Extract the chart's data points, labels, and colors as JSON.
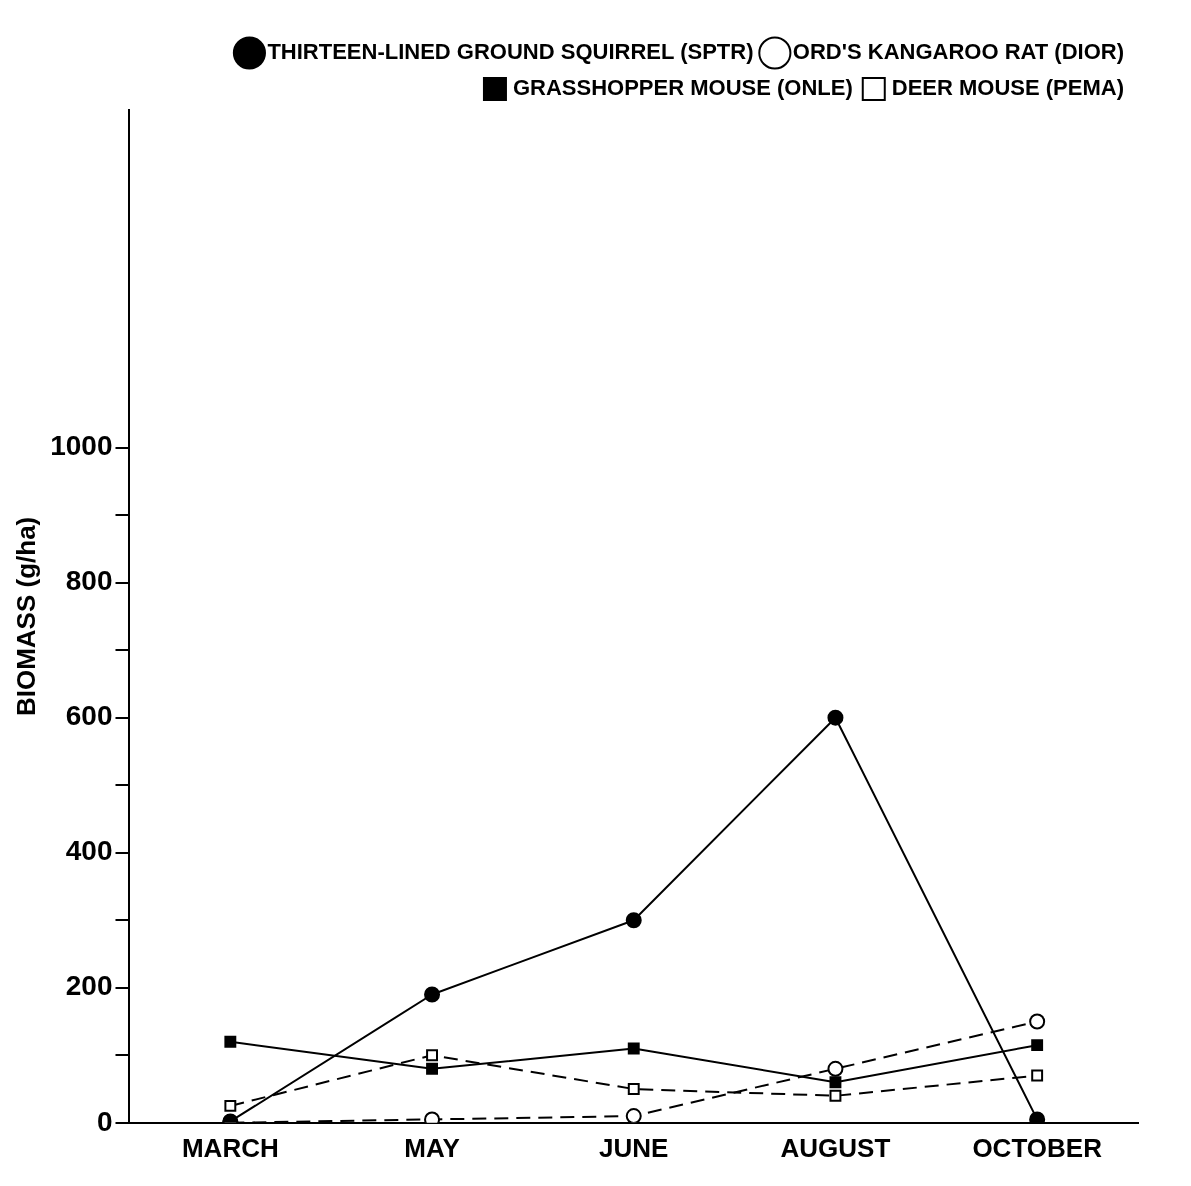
{
  "chart_data": {
    "type": "line",
    "ylabel": "BIOMASS (g/ha)",
    "categories": [
      "MARCH",
      "MAY",
      "JUNE",
      "AUGUST",
      "OCTOBER"
    ],
    "series": [
      {
        "name": "THIRTEEN-LINED GROUND SQUIRREL (SPTR)",
        "color": "#000000",
        "marker": "circle",
        "line_style": "solid",
        "values": [
          2,
          190,
          300,
          600,
          5
        ]
      },
      {
        "name": "ORD'S KANGAROO RAT (DIOR)",
        "color": "#000000",
        "marker": "circle",
        "line_style": "dashed",
        "values": [
          0,
          5,
          10,
          80,
          150
        ]
      },
      {
        "name": "GRASSHOPPER MOUSE (ONLE)",
        "color": "#000000",
        "marker": "square",
        "line_style": "solid",
        "values": [
          120,
          80,
          110,
          60,
          115
        ]
      },
      {
        "name": "DEER MOUSE (PEMA)",
        "color": "#000000",
        "marker": "square",
        "line_style": "dashed",
        "values": [
          25,
          100,
          50,
          40,
          70
        ]
      }
    ],
    "ylim": [
      0,
      1500
    ],
    "yticks": [
      0,
      {
        "value": 100,
        "label": null
      },
      200,
      {
        "value": 300,
        "label": null
      },
      400,
      {
        "value": 500,
        "label": null
      },
      600,
      {
        "value": 700,
        "label": null
      },
      800,
      {
        "value": 900,
        "label": null
      },
      1000
    ],
    "grid": false,
    "legend": "top right"
  }
}
